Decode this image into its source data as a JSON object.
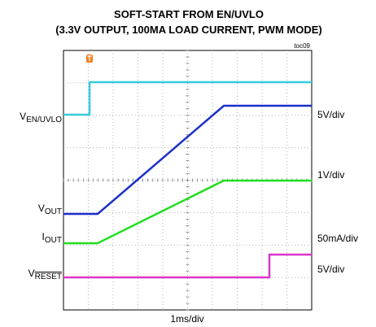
{
  "chart_data": {
    "type": "scope",
    "title": "SOFT-START FROM EN/UVLO",
    "subtitle": "(3.3V OUTPUT, 100MA LOAD CURRENT, PWM MODE)",
    "tag": "toc09",
    "x_label": "1ms/div",
    "channels": [
      {
        "symbol": "V",
        "sub": "EN/UVLO",
        "scale": "5V/div",
        "color": "#33ccdd"
      },
      {
        "symbol": "V",
        "sub": "OUT",
        "scale": "1V/div",
        "color": "#1a2fc8"
      },
      {
        "symbol": "I",
        "sub": "OUT",
        "scale": "50mA/div",
        "color": "#22dd22"
      },
      {
        "symbol": "V",
        "sub": "RESET",
        "scale": "5V/div",
        "color": "#dd33cc"
      }
    ]
  }
}
